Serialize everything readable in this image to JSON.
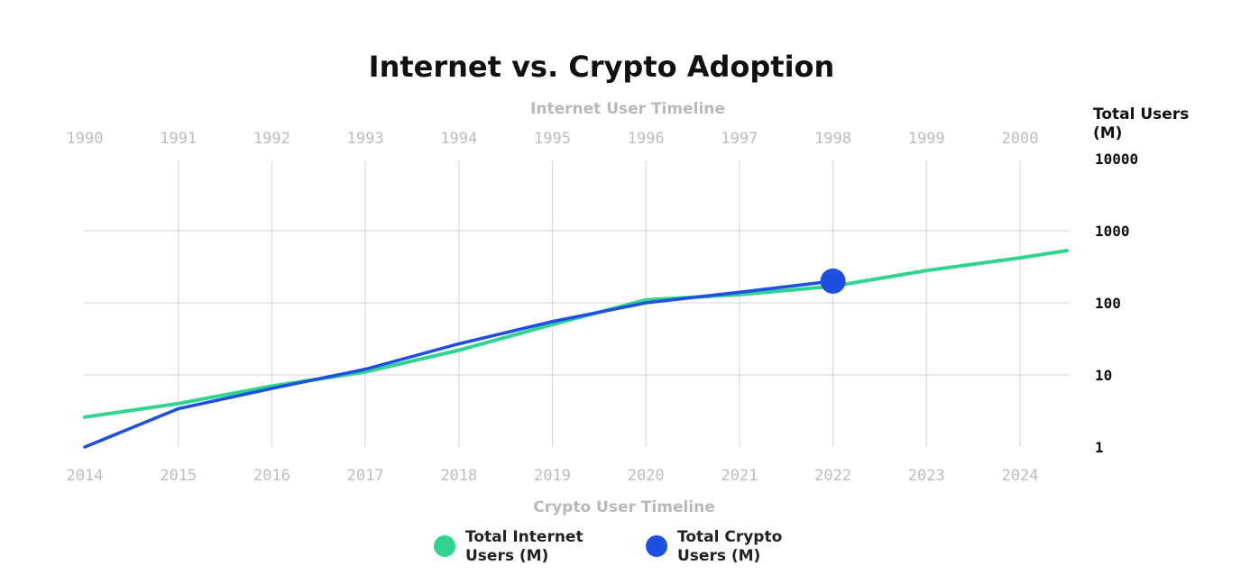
{
  "chart_data": {
    "type": "line",
    "title": "Internet vs. Crypto Adoption",
    "top_axis": {
      "label": "Internet User Timeline",
      "ticks": [
        "1990",
        "1991",
        "1992",
        "1993",
        "1994",
        "1995",
        "1996",
        "1997",
        "1998",
        "1999",
        "2000"
      ]
    },
    "bottom_axis": {
      "label": "Crypto User Timeline",
      "ticks": [
        "2014",
        "2015",
        "2016",
        "2017",
        "2018",
        "2019",
        "2020",
        "2021",
        "2022",
        "2023",
        "2024"
      ]
    },
    "y_axis": {
      "label_lines": [
        "Total Users",
        "(M)"
      ],
      "scale": "log",
      "ylim": [
        1,
        10000
      ],
      "ticks": [
        "10000",
        "1000",
        "100",
        "10",
        "1"
      ]
    },
    "grid": true,
    "legend_position": "bottom-center",
    "series": [
      {
        "name_lines": [
          "Total Internet",
          "Users (M)"
        ],
        "color": "#2fd48f",
        "x": [
          1990,
          1991,
          1992,
          1993,
          1994,
          1995,
          1996,
          1997,
          1998,
          1999,
          2000,
          2000.5
        ],
        "values": [
          2.6,
          4,
          7,
          11,
          22,
          50,
          110,
          130,
          170,
          280,
          420,
          530
        ]
      },
      {
        "name_lines": [
          "Total Crypto",
          "Users (M)"
        ],
        "color": "#1f4fe0",
        "x": [
          2014,
          2015,
          2016,
          2017,
          2018,
          2019,
          2020,
          2021,
          2022
        ],
        "values": [
          1,
          3.4,
          6.5,
          12,
          27,
          55,
          100,
          140,
          200
        ],
        "marker_last_point": true
      }
    ]
  }
}
